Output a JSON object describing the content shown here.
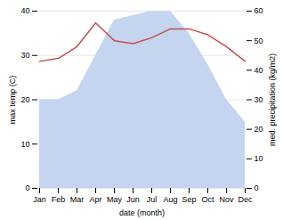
{
  "chart_data": {
    "type": "line",
    "xlabel": "date (month)",
    "ylabel": "max temp (C)",
    "y2label": "med. precipitation (kg/m2)",
    "categories": [
      "Jan",
      "Feb",
      "Mar",
      "Apr",
      "May",
      "Jun",
      "Jul",
      "Aug",
      "Sep",
      "Oct",
      "Nov",
      "Dec"
    ],
    "series": [
      {
        "type": "area",
        "color": "#c5d5f0",
        "values": [
          20,
          20,
          22,
          30,
          38,
          39,
          40,
          40,
          35,
          28,
          20,
          15
        ]
      },
      {
        "type": "line",
        "color": "#c0504d",
        "axis": "y2",
        "values": [
          43,
          44,
          48,
          56,
          50,
          49,
          51,
          54,
          54,
          52,
          48,
          43
        ]
      }
    ],
    "ylim": [
      0,
      40
    ],
    "yticks": [
      0,
      10,
      20,
      30,
      40
    ],
    "y2lim": [
      0,
      60
    ],
    "y2ticks": [
      0,
      10,
      20,
      30,
      40,
      50,
      60
    ],
    "grid": true
  }
}
